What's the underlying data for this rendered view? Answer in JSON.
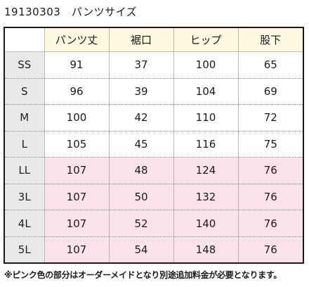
{
  "title": "19130303　パンツサイズ",
  "table": {
    "corner": "",
    "headers": [
      "パンツ丈",
      "裾口",
      "ヒップ",
      "股下"
    ],
    "rows": [
      {
        "size": "SS",
        "values": [
          "91",
          "37",
          "100",
          "65"
        ],
        "special": false
      },
      {
        "size": "S",
        "values": [
          "96",
          "39",
          "104",
          "69"
        ],
        "special": false
      },
      {
        "size": "M",
        "values": [
          "100",
          "42",
          "110",
          "72"
        ],
        "special": false
      },
      {
        "size": "L",
        "values": [
          "105",
          "45",
          "116",
          "75"
        ],
        "special": false
      },
      {
        "size": "LL",
        "values": [
          "107",
          "48",
          "124",
          "76"
        ],
        "special": true
      },
      {
        "size": "3L",
        "values": [
          "107",
          "50",
          "132",
          "76"
        ],
        "special": true
      },
      {
        "size": "4L",
        "values": [
          "107",
          "52",
          "140",
          "76"
        ],
        "special": true
      },
      {
        "size": "5L",
        "values": [
          "107",
          "54",
          "148",
          "76"
        ],
        "special": true
      }
    ]
  },
  "footnote": "※ピンク色の部分はオーダーメイドとなり別途追加料金が必要となります。",
  "colors": {
    "header_bg": "#fcf9e0",
    "rowhead_bg": "#e9e9e9",
    "special_bg": "#fbe4e9"
  }
}
